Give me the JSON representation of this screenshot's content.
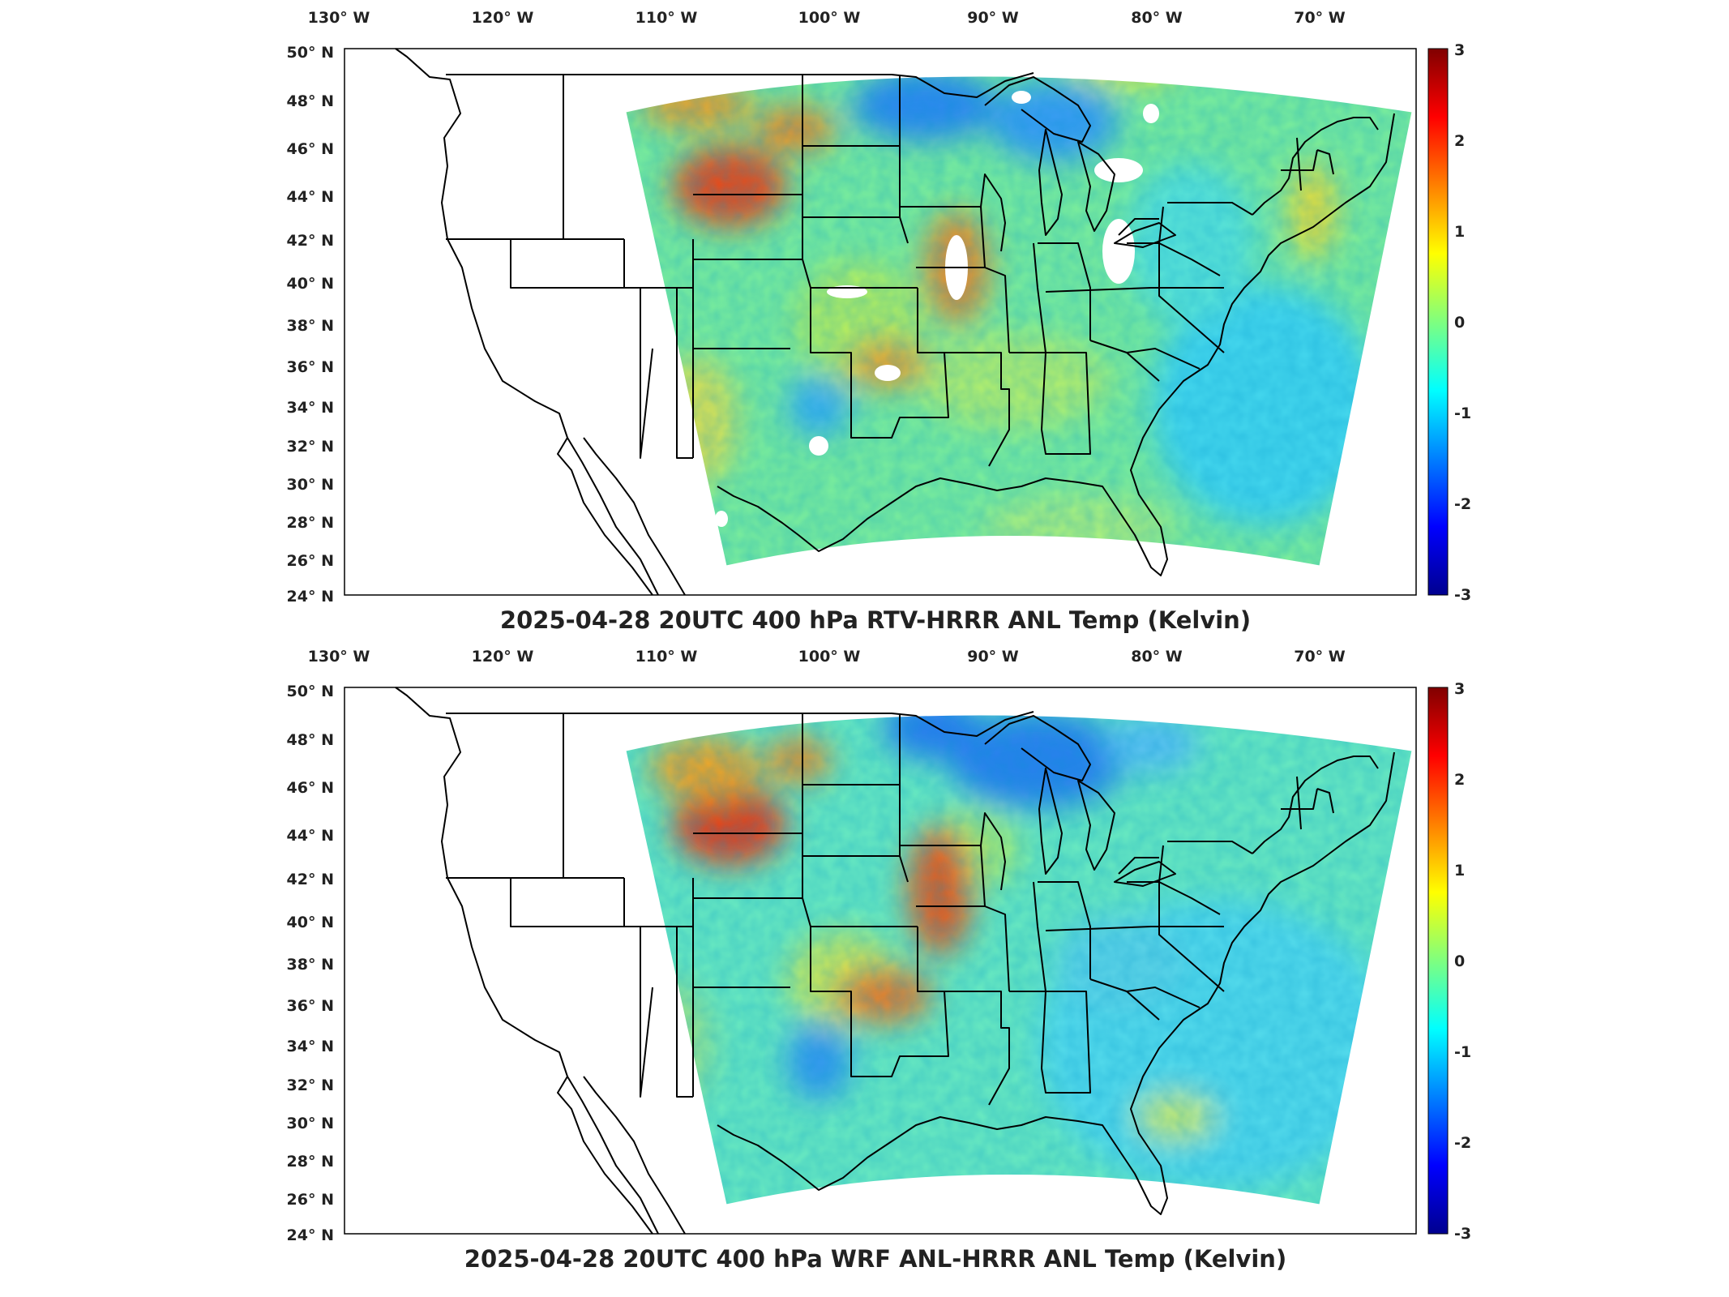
{
  "colors": {
    "low": "#00008f",
    "mid": "#20d09a",
    "high": "#800000",
    "border": "#000000",
    "missing": "#ffffff"
  },
  "panels": [
    {
      "id": "top",
      "title": "2025-04-28 20UTC 400 hPa RTV-HRRR ANL Temp (Kelvin)",
      "lon_ticks": [
        "130° W",
        "120° W",
        "110° W",
        "100° W",
        "90° W",
        "80° W",
        "70° W"
      ],
      "lat_ticks": [
        "50° N",
        "48° N",
        "46° N",
        "44° N",
        "42° N",
        "40° N",
        "38° N",
        "36° N",
        "34° N",
        "32° N",
        "30° N",
        "28° N",
        "26° N",
        "24° N"
      ],
      "colorbar": {
        "min": -3,
        "max": 3,
        "ticks": [
          "3",
          "2",
          "1",
          "0",
          "-1",
          "-2",
          "-3"
        ]
      },
      "has_missing_patches": true
    },
    {
      "id": "bottom",
      "title": "2025-04-28 20UTC 400 hPa WRF ANL-HRRR ANL Temp (Kelvin)",
      "lon_ticks": [
        "130° W",
        "120° W",
        "110° W",
        "100° W",
        "90° W",
        "80° W",
        "70° W"
      ],
      "lat_ticks": [
        "50° N",
        "48° N",
        "46° N",
        "44° N",
        "42° N",
        "40° N",
        "38° N",
        "36° N",
        "34° N",
        "32° N",
        "30° N",
        "28° N",
        "26° N",
        "24° N"
      ],
      "colorbar": {
        "min": -3,
        "max": 3,
        "ticks": [
          "3",
          "2",
          "1",
          "0",
          "-1",
          "-2",
          "-3"
        ]
      },
      "has_missing_patches": false
    }
  ]
}
